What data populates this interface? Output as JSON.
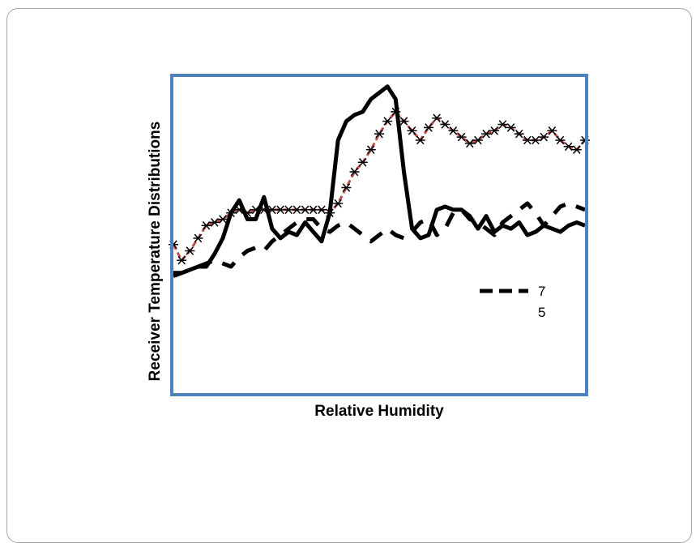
{
  "chart_data": {
    "type": "line",
    "title": "",
    "xlabel": "Relative Humidity",
    "ylabel": "Receiver Temperature Distributions",
    "x_range": [
      0,
      100
    ],
    "y_range": [
      0,
      100
    ],
    "ticks_shown": false,
    "grid": false,
    "plot_border_color": "#4f81bd",
    "legend": {
      "position": "right-middle",
      "entries": [
        "7",
        "5"
      ]
    },
    "series": [
      {
        "style": "solid-black",
        "color": "#000000",
        "x": [
          0,
          2,
          4,
          6,
          8,
          10,
          12,
          14,
          16,
          18,
          20,
          22,
          24,
          26,
          28,
          30,
          32,
          34,
          36,
          38,
          40,
          42,
          44,
          46,
          48,
          50,
          52,
          54,
          56,
          58,
          60,
          62,
          64,
          66,
          68,
          70,
          72,
          74,
          76,
          78,
          80,
          82,
          84,
          86,
          88,
          90,
          92,
          94,
          96,
          98,
          100
        ],
        "y": [
          37,
          38,
          39,
          40,
          40,
          44,
          49,
          57,
          61,
          55,
          55,
          62,
          52,
          49,
          51,
          50,
          54,
          51,
          48,
          57,
          80,
          86,
          88,
          89,
          93,
          95,
          97,
          93,
          70,
          52,
          49,
          50,
          58,
          59,
          58,
          58,
          56,
          52,
          56,
          51,
          53,
          52,
          54,
          50,
          51,
          53,
          52,
          51,
          53,
          54,
          53
        ]
      },
      {
        "style": "dashed-black",
        "color": "#000000",
        "x": [
          0,
          2,
          4,
          6,
          8,
          10,
          12,
          14,
          16,
          18,
          20,
          22,
          24,
          26,
          28,
          30,
          32,
          34,
          36,
          38,
          40,
          42,
          44,
          46,
          48,
          50,
          52,
          54,
          56,
          58,
          60,
          62,
          64,
          66,
          68,
          70,
          72,
          74,
          76,
          78,
          80,
          82,
          84,
          86,
          88,
          90,
          92,
          94,
          96,
          98,
          100
        ],
        "y": [
          38,
          38,
          39,
          40,
          41,
          42,
          41,
          40,
          43,
          45,
          46,
          45,
          48,
          50,
          52,
          54,
          55,
          55,
          52,
          51,
          53,
          54,
          52,
          50,
          48,
          50,
          52,
          50,
          49,
          51,
          54,
          55,
          50,
          52,
          57,
          58,
          55,
          54,
          52,
          50,
          54,
          56,
          58,
          60,
          57,
          53,
          56,
          59,
          60,
          59,
          58
        ]
      },
      {
        "style": "red-dashed-asterisk",
        "color": "#c0504d",
        "x": [
          0,
          2,
          4,
          6,
          8,
          10,
          12,
          14,
          16,
          18,
          20,
          22,
          24,
          26,
          28,
          30,
          32,
          34,
          36,
          38,
          40,
          42,
          44,
          46,
          48,
          50,
          52,
          54,
          56,
          58,
          60,
          62,
          64,
          66,
          68,
          70,
          72,
          74,
          76,
          78,
          80,
          82,
          84,
          86,
          88,
          90,
          92,
          94,
          96,
          98,
          100
        ],
        "y": [
          47,
          42,
          45,
          49,
          53,
          54,
          55,
          57,
          58,
          57,
          58,
          58,
          58,
          58,
          58,
          58,
          58,
          58,
          58,
          57,
          60,
          65,
          70,
          73,
          77,
          82,
          86,
          89,
          86,
          83,
          80,
          84,
          87,
          85,
          83,
          81,
          79,
          80,
          82,
          83,
          85,
          84,
          82,
          80,
          80,
          81,
          83,
          80,
          78,
          77,
          80
        ]
      }
    ]
  }
}
